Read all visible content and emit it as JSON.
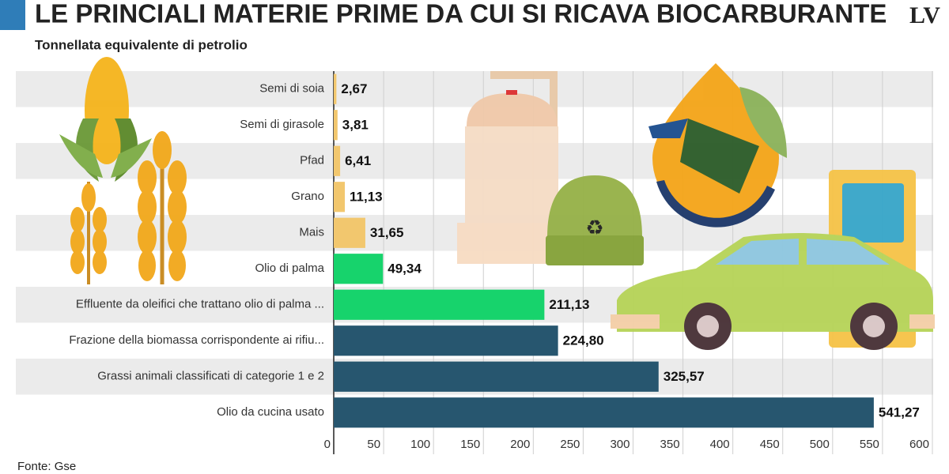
{
  "chart_data": {
    "type": "hbar",
    "title": "LE PRINCIALI MATERIE PRIME DA CUI SI RICAVA BIOCARBURANTE",
    "subtitle": "Tonnellata equivalente di petrolio",
    "source": "Fonte: Gse",
    "logo": "LV",
    "categories": [
      "Semi di soia",
      "Semi di girasole",
      "Pfad",
      "Grano",
      "Mais",
      "Olio di palma",
      "Effluente da oleifici che trattano olio di palma ...",
      "Frazione della biomassa corrispondente ai rifiu...",
      "Grassi animali classificati di categorie 1 e 2",
      "Olio da cucina usato"
    ],
    "values": [
      2.67,
      3.81,
      6.41,
      11.13,
      31.65,
      49.34,
      211.13,
      224.8,
      325.57,
      541.27
    ],
    "value_labels": [
      "2,67",
      "3,81",
      "6,41",
      "11,13",
      "31,65",
      "49,34",
      "211,13",
      "224,80",
      "325,57",
      "541,27"
    ],
    "colors": [
      "#f2c76e",
      "#f2c76e",
      "#f2c76e",
      "#f2c76e",
      "#f2c76e",
      "#17d36c",
      "#17d36c",
      "#27566f",
      "#27566f",
      "#27566f"
    ],
    "xlim": [
      0,
      600
    ],
    "xticks": [
      0,
      50,
      100,
      150,
      200,
      250,
      300,
      350,
      400,
      450,
      500,
      550,
      600
    ],
    "grid": true
  }
}
